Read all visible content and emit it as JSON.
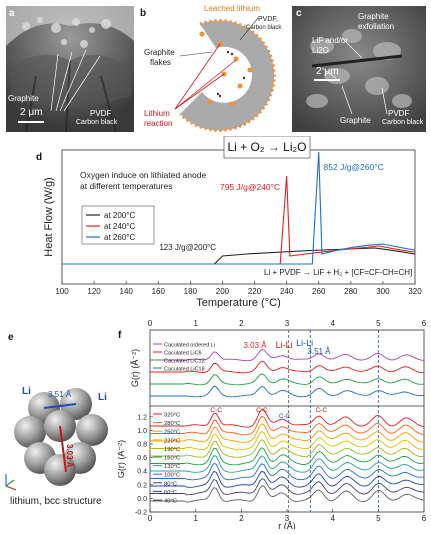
{
  "panels": {
    "a": {
      "label": "a",
      "annotations": [
        "Graphite",
        "PVDF",
        "Carbon black"
      ],
      "scale": "2 μm"
    },
    "b": {
      "label": "b",
      "annotations": [
        "Leached lithium",
        "PVDF,",
        "Carbon black",
        "Graphite",
        "flakes",
        "Lithium",
        "reaction"
      ]
    },
    "c": {
      "label": "c",
      "annotations": [
        "Graphite",
        "exfoliation",
        "LiF and/or",
        "Li2O",
        "Graphite",
        "PVDF",
        "Carbon black"
      ],
      "scale": "2 μm"
    },
    "d": {
      "label": "d",
      "equation_top": "Li + O₂ → Li₂O",
      "equation_bottom": "Li + PVDF → LiF + H₂ + [CF=CF-CH=CH]",
      "note_line1": "Oxygen induce on lithiated anode",
      "note_line2": "at different temperatures"
    },
    "e": {
      "label": "e",
      "caption": "lithium, bcc structure",
      "li_label_1": "Li",
      "li_label_2": "Li",
      "dist_1": "3.51 Å",
      "dist_2": "3.03 Å"
    },
    "f": {
      "label": "f",
      "lili_1": "Li-Li",
      "lili_2": "Li-Li",
      "dist_1": "3.03 Å",
      "dist_2": "3.51 Å",
      "cc_labels": [
        "C-C",
        "C-C",
        "C-C",
        "C-C"
      ]
    }
  },
  "chart_data": [
    {
      "id": "dsc",
      "type": "line",
      "xlabel": "Temperature (°C)",
      "ylabel": "Heat Flow (W/g)",
      "xlim": [
        100,
        320
      ],
      "xticks": [
        100,
        120,
        140,
        160,
        180,
        200,
        220,
        240,
        260,
        280,
        300,
        320
      ],
      "legend": [
        "at 200°C",
        "at 240°C",
        "at 260°C"
      ],
      "legend_position": "middle-left",
      "series": [
        {
          "name": "at 200°C",
          "color": "#222222",
          "label": "123 J/g@200°C",
          "peak_x": 200
        },
        {
          "name": "at 240°C",
          "color": "#e02020",
          "label": "795 J/g@240°C",
          "peak_x": 240
        },
        {
          "name": "at 260°C",
          "color": "#1f6fd0",
          "label": "852 J/g@260°C",
          "peak_x": 260
        }
      ]
    },
    {
      "id": "pdf",
      "type": "line",
      "xlabel": "r (Å)",
      "ylabel": "G(r) (Å⁻²)",
      "xlim": [
        0,
        6
      ],
      "xticks": [
        0,
        1,
        2,
        3,
        4,
        5,
        6
      ],
      "yticks": [
        -0.2,
        0.0,
        0.2,
        0.4,
        0.6,
        0.8,
        1.0,
        1.2
      ],
      "reference_lines_r": [
        3.03,
        3.51,
        5.0
      ],
      "legend_top": [
        "Caculated ordered Li",
        "Caculated LiC6",
        "Caculated LiC12",
        "Caculated LiC18"
      ],
      "legend_bottom": [
        "320°C",
        "280°C",
        "250°C",
        "220°C",
        "190°C",
        "160°C",
        "130°C",
        "100°C",
        "80°C",
        "60°C",
        "40°C"
      ]
    }
  ]
}
